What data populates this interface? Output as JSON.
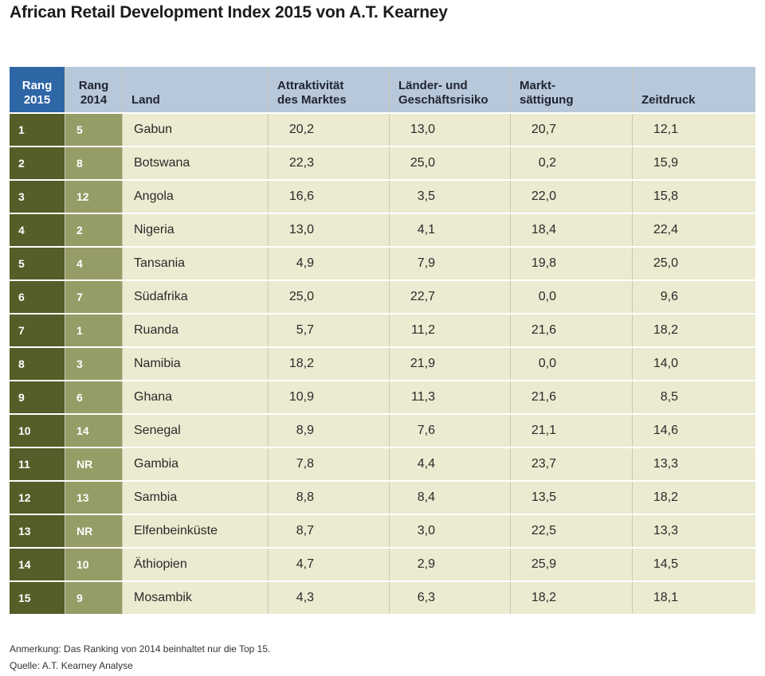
{
  "title": "African Retail Development Index 2015 von A.T. Kearney",
  "headers": [
    "Rang 2015",
    "Rang 2014",
    "Land",
    "Attraktivität des Marktes",
    "Länder- und Geschäftsrisiko",
    "Markt-sättigung",
    "Zeitdruck"
  ],
  "header_lines": [
    [
      "Rang",
      "2015"
    ],
    [
      "Rang",
      "2014"
    ],
    [
      "",
      "Land"
    ],
    [
      "Attraktivität",
      "des Marktes"
    ],
    [
      "Länder- und",
      "Geschäftsrisiko"
    ],
    [
      "Markt-",
      "sättigung"
    ],
    [
      "",
      "Zeitdruck"
    ]
  ],
  "rows": [
    [
      "1",
      "5",
      "Gabun",
      "20,2",
      "13,0",
      "20,7",
      "12,1"
    ],
    [
      "2",
      "8",
      "Botswana",
      "22,3",
      "25,0",
      "0,2",
      "15,9"
    ],
    [
      "3",
      "12",
      "Angola",
      "16,6",
      "3,5",
      "22,0",
      "15,8"
    ],
    [
      "4",
      "2",
      "Nigeria",
      "13,0",
      "4,1",
      "18,4",
      "22,4"
    ],
    [
      "5",
      "4",
      "Tansania",
      "4,9",
      "7,9",
      "19,8",
      "25,0"
    ],
    [
      "6",
      "7",
      "Südafrika",
      "25,0",
      "22,7",
      "0,0",
      "9,6"
    ],
    [
      "7",
      "1",
      "Ruanda",
      "5,7",
      "11,2",
      "21,6",
      "18,2"
    ],
    [
      "8",
      "3",
      "Namibia",
      "18,2",
      "21,9",
      "0,0",
      "14,0"
    ],
    [
      "9",
      "6",
      "Ghana",
      "10,9",
      "11,3",
      "21,6",
      "8,5"
    ],
    [
      "10",
      "14",
      "Senegal",
      "8,9",
      "7,6",
      "21,1",
      "14,6"
    ],
    [
      "11",
      "NR",
      "Gambia",
      "7,8",
      "4,4",
      "23,7",
      "13,3"
    ],
    [
      "12",
      "13",
      "Sambia",
      "8,8",
      "8,4",
      "13,5",
      "18,2"
    ],
    [
      "13",
      "NR",
      "Elfenbeinküste",
      "8,7",
      "3,0",
      "22,5",
      "13,3"
    ],
    [
      "14",
      "10",
      "Äthiopien",
      "4,7",
      "2,9",
      "25,9",
      "14,5"
    ],
    [
      "15",
      "9",
      "Mosambik",
      "4,3",
      "6,3",
      "18,2",
      "18,1"
    ]
  ],
  "footnote": "Anmerkung: Das Ranking von 2014 beinhaltet nur die Top 15.",
  "source": "Quelle: A.T. Kearney Analyse"
}
